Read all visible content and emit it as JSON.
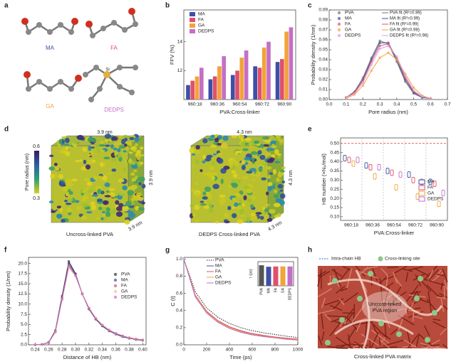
{
  "panel_letters": [
    "a",
    "b",
    "c",
    "d",
    "e",
    "f",
    "g",
    "h"
  ],
  "panel_a": {
    "molecules": [
      "MA",
      "FA",
      "GA",
      "DEDPS"
    ],
    "atom_label": "Si"
  },
  "panel_d": {
    "colorbar_title": "Pore radius (nm)",
    "colorbar_ticks": [
      0.6,
      0.3
    ],
    "left_box_labels": [
      "3.9 nm",
      "3.9 nm",
      "3.9 nm"
    ],
    "right_box_labels": [
      "4.3 nm",
      "4.3 nm",
      "4.3 nm"
    ],
    "captions": [
      "Uncross-linked PVA",
      "DEDPS Cross-linked PVA"
    ]
  },
  "panel_h": {
    "legend": [
      "Intra-chain HB",
      "Cross-linking site"
    ],
    "region_label": [
      "Uncross-linked",
      "PVA region"
    ],
    "caption": "Cross-linked PVA matrix"
  },
  "chart_data": [
    {
      "type": "bar",
      "ylabel": "FFV (%)",
      "xlabel": "PVA:Cross-linker",
      "categories": [
        "960:18",
        "960:36",
        "960:54",
        "960:72",
        "960:90"
      ],
      "ylim": [
        10,
        16.2
      ],
      "yticks": [
        12,
        14
      ],
      "series": [
        {
          "name": "MA",
          "color": "#3d4fa6",
          "values": [
            11.0,
            11.4,
            11.7,
            12.3,
            12.6
          ]
        },
        {
          "name": "FA",
          "color": "#e0506a",
          "values": [
            11.3,
            11.6,
            12.0,
            12.2,
            12.8
          ]
        },
        {
          "name": "GA",
          "color": "#f2a33a",
          "values": [
            11.6,
            12.3,
            12.9,
            13.6,
            14.7
          ]
        },
        {
          "name": "DEDPS",
          "color": "#c46fc6",
          "values": [
            12.2,
            13.0,
            13.4,
            14.0,
            15.0
          ]
        }
      ]
    },
    {
      "type": "line",
      "markers": true,
      "ylabel": "Probability density (1/nm)",
      "xlabel": "Pore radius (nm)",
      "x": [
        0.1,
        0.15,
        0.2,
        0.25,
        0.3,
        0.35,
        0.4,
        0.45,
        0.5,
        0.55,
        0.6
      ],
      "xlim": [
        0,
        0.7
      ],
      "xticks": [
        {
          "value": 0,
          "label": "0.0"
        },
        0.1,
        0.2,
        0.3,
        0.4,
        0.5,
        0.6,
        0.7
      ],
      "ylim": [
        0,
        0.09
      ],
      "yticks": [
        {
          "value": 0,
          "label": "0.00"
        },
        0.01,
        0.02,
        0.03,
        0.04,
        0.05,
        0.06,
        0.07,
        0.08,
        0.09
      ],
      "series": [
        {
          "name": "PVA",
          "fit_label": "PVA fit (R²=0.99)",
          "color": "#777777",
          "values": [
            0.002,
            0.008,
            0.022,
            0.042,
            0.059,
            0.056,
            0.038,
            0.018,
            0.006,
            0.002,
            0.001
          ]
        },
        {
          "name": "MA",
          "fit_label": "MA fit (R²=0.99)",
          "color": "#3d4fa6",
          "values": [
            0.002,
            0.007,
            0.02,
            0.04,
            0.057,
            0.057,
            0.04,
            0.02,
            0.007,
            0.002,
            0.001
          ]
        },
        {
          "name": "FA",
          "fit_label": "FA fit (R²=0.99)",
          "color": "#e0506a",
          "values": [
            0.002,
            0.007,
            0.019,
            0.038,
            0.054,
            0.056,
            0.042,
            0.022,
            0.008,
            0.003,
            0.001
          ]
        },
        {
          "name": "GA",
          "fit_label": "GA fit (R²=0.98)",
          "color": "#f2a33a",
          "values": [
            0.001,
            0.005,
            0.014,
            0.029,
            0.042,
            0.047,
            0.04,
            0.026,
            0.012,
            0.004,
            0.001
          ]
        },
        {
          "name": "DEDPS",
          "fit_label": "DEDPS fit (R²=0.98)",
          "color": "#d9a0d9",
          "values": [
            0.002,
            0.006,
            0.017,
            0.035,
            0.051,
            0.054,
            0.043,
            0.024,
            0.009,
            0.003,
            0.001
          ]
        }
      ]
    },
    {
      "type": "box",
      "ylabel": "HB number (×N₀/mol)",
      "xlabel": "PVA:Cross-linker",
      "categories": [
        "960:18",
        "960:36",
        "960:54",
        "960:72",
        "960:90"
      ],
      "ylim": [
        0.08,
        0.53
      ],
      "yticks": [
        {
          "value": 0.1,
          "label": "0.10"
        },
        0.15,
        {
          "value": 0.2,
          "label": "0.20"
        },
        0.25,
        {
          "value": 0.3,
          "label": "0.30"
        },
        0.35,
        {
          "value": 0.4,
          "label": "0.40"
        },
        0.45,
        {
          "value": 0.5,
          "label": "0.50"
        }
      ],
      "reference": 0.5,
      "reference_color": "#e03030",
      "series": [
        {
          "name": "MA",
          "color": "#3d4fa6",
          "values": [
            0.42,
            0.38,
            0.35,
            0.33,
            0.29
          ]
        },
        {
          "name": "FA",
          "color": "#e0506a",
          "values": [
            0.41,
            0.37,
            0.34,
            0.3,
            0.28
          ]
        },
        {
          "name": "GA",
          "color": "#f2a33a",
          "values": [
            0.39,
            0.32,
            0.26,
            0.21,
            0.17
          ]
        },
        {
          "name": "DEDPS",
          "color": "#c46fc6",
          "values": [
            0.41,
            0.37,
            0.33,
            0.29,
            0.23
          ]
        }
      ]
    },
    {
      "type": "line",
      "markers": true,
      "ylabel": "Probability density (1/nm)",
      "xlabel": "Distance of HB (nm)",
      "x": [
        0.24,
        0.25,
        0.26,
        0.27,
        0.28,
        0.29,
        0.3,
        0.31,
        0.32,
        0.33,
        0.34,
        0.35,
        0.36,
        0.37,
        0.38,
        0.39,
        0.4
      ],
      "xlim": [
        0.23,
        0.405
      ],
      "xticks": [
        0.24,
        0.26,
        0.28,
        {
          "value": 0.3,
          "label": "0.30"
        },
        0.32,
        0.34,
        0.36,
        0.38,
        {
          "value": 0.4,
          "label": "0.40"
        }
      ],
      "ylim": [
        0,
        21.5
      ],
      "yticks": [
        {
          "value": 0,
          "label": "0.0"
        },
        2.5,
        {
          "value": 5,
          "label": "5.0"
        },
        7.5,
        {
          "value": 10,
          "label": "10.0"
        },
        12.5,
        {
          "value": 15,
          "label": "15.0"
        },
        17.5,
        {
          "value": 20,
          "label": "20.0"
        }
      ],
      "series": [
        {
          "name": "PVA",
          "color": "#333333",
          "values": [
            0,
            0.1,
            0.6,
            3.5,
            12,
            20.5,
            17.5,
            12.5,
            8.8,
            6.3,
            4.6,
            3.4,
            2.6,
            2.0,
            1.6,
            1.3,
            1.1
          ]
        },
        {
          "name": "MA",
          "color": "#3d4fa6",
          "values": [
            0,
            0.1,
            0.6,
            3.3,
            11.6,
            20,
            17.3,
            12.6,
            8.9,
            6.4,
            4.7,
            3.5,
            2.7,
            2.1,
            1.7,
            1.4,
            1.2
          ]
        },
        {
          "name": "FA",
          "color": "#e0506a",
          "values": [
            0,
            0.1,
            0.5,
            3.2,
            11.3,
            19.5,
            17.1,
            12.6,
            9,
            6.5,
            4.8,
            3.6,
            2.8,
            2.2,
            1.7,
            1.4,
            1.2
          ]
        },
        {
          "name": "GA",
          "color": "#f2c080",
          "values": [
            0,
            0.1,
            0.5,
            3.1,
            11,
            19,
            16.9,
            12.6,
            9.1,
            6.6,
            4.9,
            3.7,
            2.8,
            2.2,
            1.8,
            1.5,
            1.2
          ]
        },
        {
          "name": "DEDPS",
          "color": "#c46fc6",
          "values": [
            0,
            0.1,
            0.5,
            3.2,
            11.2,
            19.4,
            17,
            12.5,
            9,
            6.5,
            4.8,
            3.6,
            2.8,
            2.2,
            1.7,
            1.4,
            1.2
          ]
        }
      ]
    },
    {
      "type": "line",
      "markers": false,
      "ylabel": "C (t)",
      "xlabel": "Time (ps)",
      "x": [
        0,
        100,
        200,
        300,
        400,
        500,
        600,
        700,
        800,
        900,
        1000
      ],
      "xlim": [
        0,
        1000
      ],
      "xticks": [
        0,
        200,
        400,
        600,
        800,
        1000
      ],
      "ylim": [
        0,
        1.02
      ],
      "yticks": [
        {
          "value": 0,
          "label": "0.0"
        },
        0.2,
        0.4,
        0.6,
        0.8,
        {
          "value": 1,
          "label": "1.0"
        }
      ],
      "series": [
        {
          "name": "PVA",
          "color": "#222222",
          "style": "dotted",
          "values": [
            1,
            0.62,
            0.43,
            0.32,
            0.25,
            0.2,
            0.165,
            0.14,
            0.12,
            0.1,
            0.085
          ]
        },
        {
          "name": "MA",
          "color": "#3d4fa6",
          "values": [
            1,
            0.58,
            0.39,
            0.28,
            0.21,
            0.16,
            0.13,
            0.105,
            0.09,
            0.075,
            0.065
          ]
        },
        {
          "name": "FA",
          "color": "#e0506a",
          "values": [
            1,
            0.58,
            0.39,
            0.28,
            0.21,
            0.165,
            0.13,
            0.11,
            0.09,
            0.078,
            0.066
          ]
        },
        {
          "name": "GA",
          "color": "#f2a33a",
          "values": [
            1,
            0.57,
            0.38,
            0.27,
            0.2,
            0.155,
            0.12,
            0.1,
            0.085,
            0.07,
            0.06
          ]
        },
        {
          "name": "DEDPS",
          "color": "#c46fc6",
          "values": [
            1,
            0.56,
            0.37,
            0.26,
            0.19,
            0.145,
            0.115,
            0.095,
            0.08,
            0.065,
            0.055
          ]
        }
      ]
    },
    {
      "type": "bar",
      "ylabel": "τ (ps)",
      "categories": [
        "PVA",
        "MA",
        "FA",
        "GA",
        "DEDPS"
      ],
      "ylim": [
        0,
        80
      ],
      "values": [
        68,
        63,
        64,
        64,
        64
      ],
      "colors": [
        "#555555",
        "#3d4fa6",
        "#e0506a",
        "#f2a33a",
        "#c46fc6"
      ]
    }
  ]
}
